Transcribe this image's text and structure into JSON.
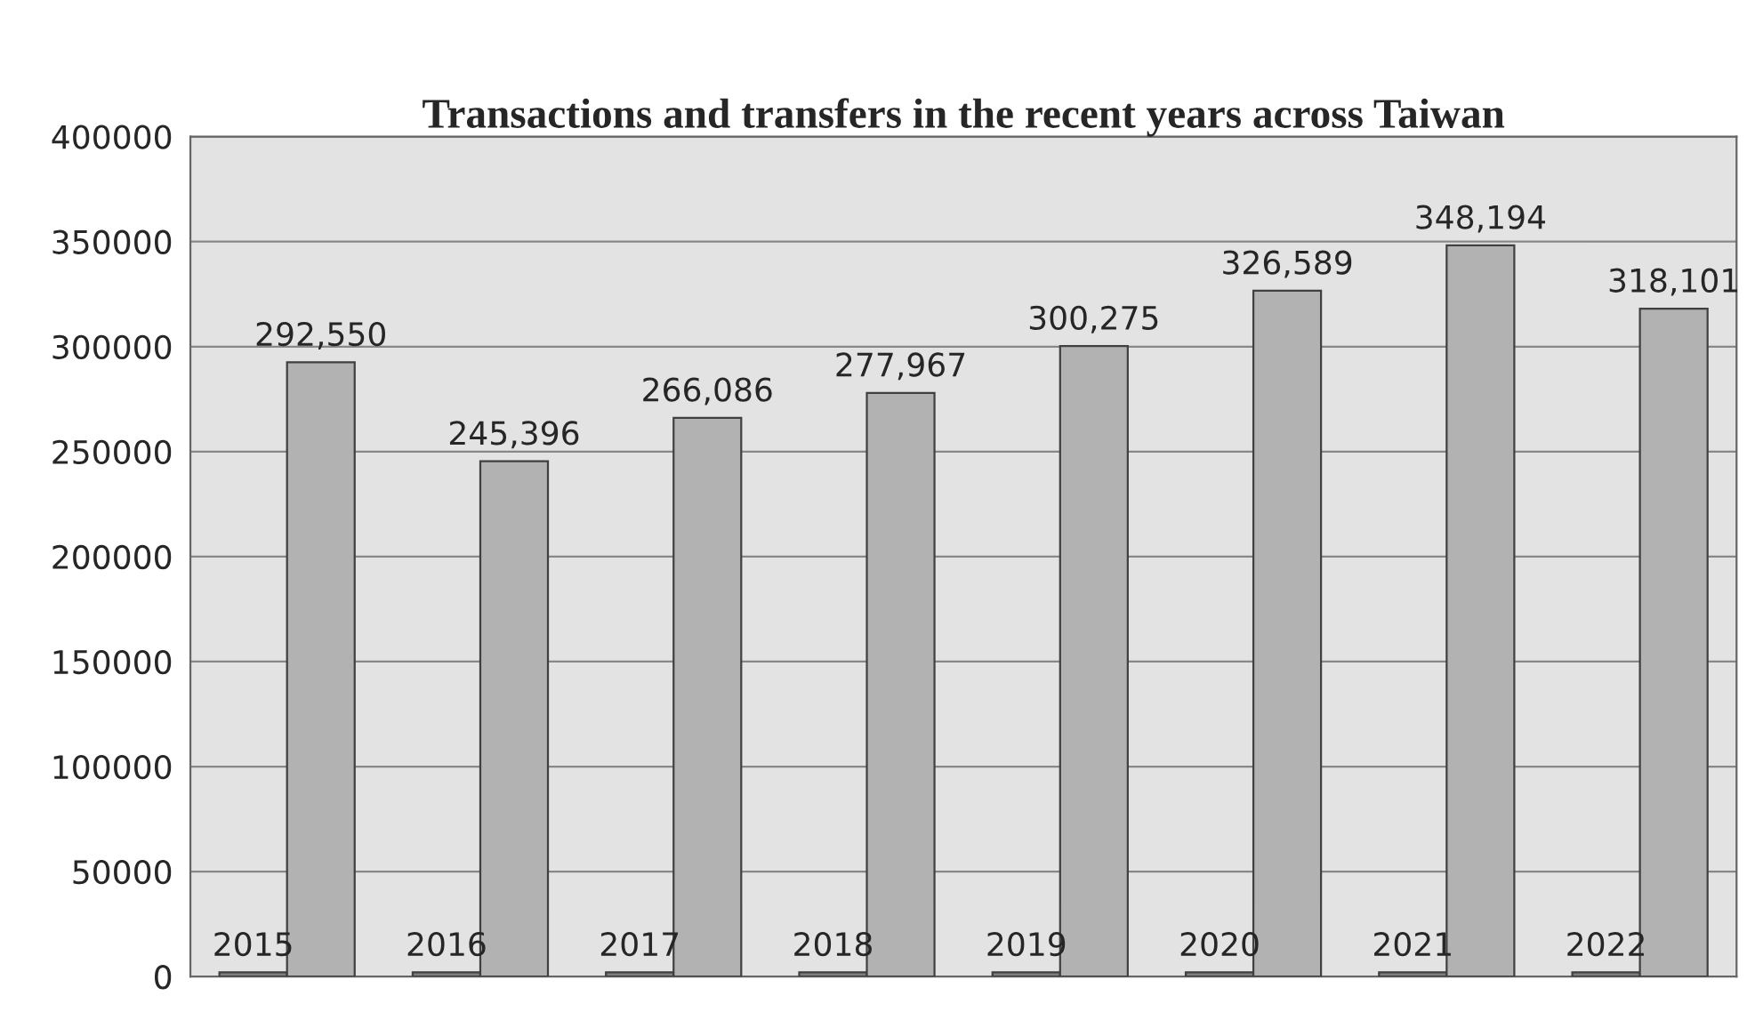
{
  "chart_data": {
    "type": "bar",
    "title": "Transactions and transfers in the recent years across Taiwan",
    "categories": [
      null,
      null,
      null,
      null,
      null,
      null,
      null,
      null
    ],
    "series": [
      {
        "color": "#7f7f7f",
        "values": [
          2015,
          2016,
          2017,
          2018,
          2019,
          2020,
          2021,
          2022
        ],
        "value_labels": [
          "2015",
          "2016",
          "2017",
          "2018",
          "2019",
          "2020",
          "2021",
          "2022"
        ]
      },
      {
        "color": "#b2b2b2",
        "values": [
          292550,
          245396,
          266086,
          277967,
          300275,
          326589,
          348194,
          318101
        ],
        "value_labels": [
          "292,550",
          "245,396",
          "266,086",
          "277,967",
          "300,275",
          "326,589",
          "348,194",
          "318,101"
        ]
      }
    ],
    "ylim": [
      0,
      400000
    ],
    "yticks": [
      0,
      50000,
      100000,
      150000,
      200000,
      250000,
      300000,
      350000,
      400000
    ],
    "grid": "y"
  }
}
